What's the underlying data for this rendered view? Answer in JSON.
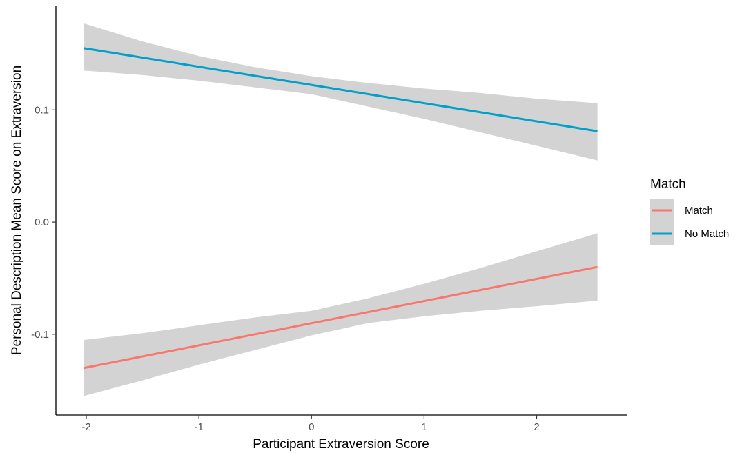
{
  "chart_data": {
    "type": "line",
    "xlabel": "Participant Extraversion Score",
    "ylabel": "Personal Description Mean Score on Extraversion",
    "xlim": [
      -2.27,
      2.8
    ],
    "ylim": [
      -0.172,
      0.193
    ],
    "x_ticks": [
      -2,
      -1,
      0,
      1,
      2
    ],
    "x_tick_labels": [
      "-2",
      "-1",
      "0",
      "1",
      "2"
    ],
    "y_ticks": [
      -0.1,
      0.0,
      0.1
    ],
    "y_tick_labels": [
      "-0.1",
      "0.0",
      "0.1"
    ],
    "grid": false,
    "legend": {
      "title": "Match",
      "position": "right",
      "entries": [
        "Match",
        "No Match"
      ]
    },
    "ribbon_color": "#d3d3d3",
    "series": [
      {
        "name": "Match",
        "color": "#f8766d",
        "x": [
          -2.02,
          2.54
        ],
        "y": [
          -0.13,
          -0.04
        ],
        "ci_x": [
          -2.02,
          -1.5,
          -1.0,
          -0.5,
          0.0,
          0.5,
          1.0,
          1.5,
          2.0,
          2.54
        ],
        "ci_lower": [
          -0.155,
          -0.141,
          -0.127,
          -0.114,
          -0.101,
          -0.09,
          -0.084,
          -0.079,
          -0.075,
          -0.07
        ],
        "ci_upper": [
          -0.105,
          -0.099,
          -0.092,
          -0.085,
          -0.079,
          -0.068,
          -0.055,
          -0.041,
          -0.026,
          -0.01
        ]
      },
      {
        "name": "No Match",
        "color": "#00a0cb",
        "x": [
          -2.02,
          2.54
        ],
        "y": [
          0.155,
          0.081
        ],
        "ci_x": [
          -2.02,
          -1.5,
          -1.0,
          -0.5,
          0.0,
          0.5,
          1.0,
          1.5,
          2.0,
          2.54
        ],
        "ci_lower": [
          0.135,
          0.131,
          0.126,
          0.12,
          0.114,
          0.103,
          0.092,
          0.08,
          0.068,
          0.055
        ],
        "ci_upper": [
          0.177,
          0.161,
          0.148,
          0.138,
          0.13,
          0.124,
          0.119,
          0.115,
          0.11,
          0.106
        ]
      }
    ]
  }
}
